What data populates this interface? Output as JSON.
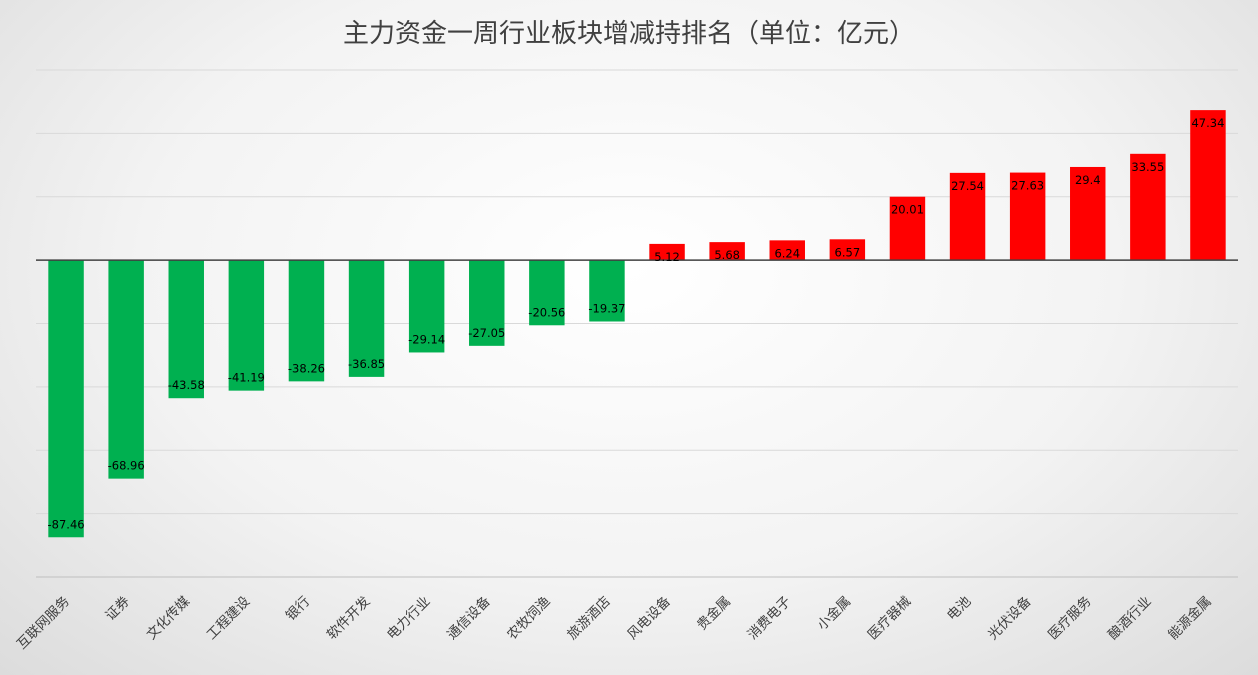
{
  "chart_data": {
    "type": "bar",
    "title": "主力资金一周行业板块增减持排名（单位：亿元）",
    "categories": [
      "互联网服务",
      "证券",
      "文化传媒",
      "工程建设",
      "银行",
      "软件开发",
      "电力行业",
      "通信设备",
      "农牧饲渔",
      "旅游酒店",
      "风电设备",
      "贵金属",
      "消费电子",
      "小金属",
      "医疗器械",
      "电池",
      "光伏设备",
      "医疗服务",
      "酿酒行业",
      "能源金属"
    ],
    "values": [
      -87.46,
      -68.96,
      -43.58,
      -41.19,
      -38.26,
      -36.85,
      -29.14,
      -27.05,
      -20.56,
      -19.37,
      5.12,
      5.68,
      6.24,
      6.57,
      20.01,
      27.54,
      27.63,
      29.4,
      33.55,
      47.34
    ],
    "data_labels": [
      "-87.46",
      "-68.96",
      "-43.58",
      "-41.19",
      "-38.26",
      "-36.85",
      "-29.14",
      "-27.05",
      "-20.56",
      "-19.37",
      "5.12",
      "5.68",
      "6.24",
      "6.57",
      "20.01",
      "27.54",
      "27.63",
      "29.4",
      "33.55",
      "47.34"
    ],
    "ylim": [
      -100,
      60
    ],
    "grid": true,
    "legend": "none",
    "colors": {
      "positive": "#ff0000",
      "negative": "#00b050",
      "grid": "#d9d9d9",
      "axis": "#404040",
      "title": "#404040"
    }
  }
}
